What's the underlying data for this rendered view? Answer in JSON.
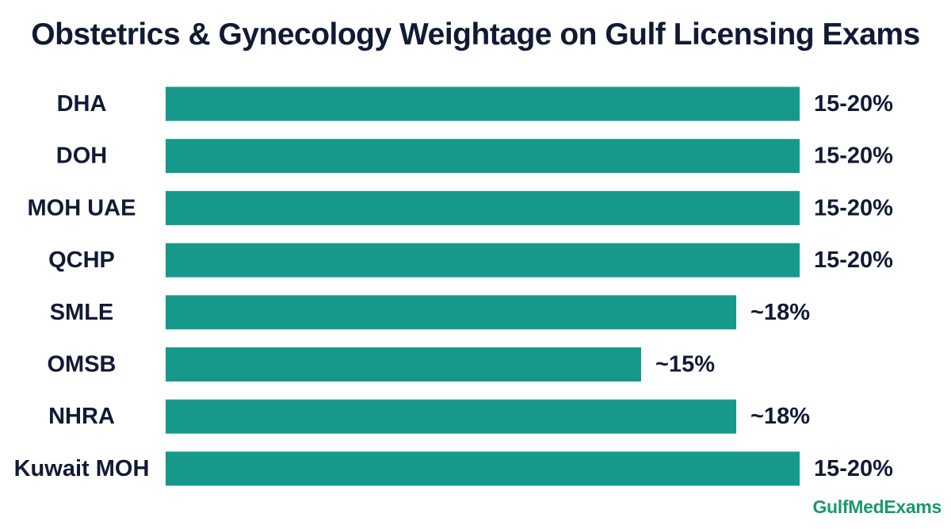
{
  "chart_data": {
    "type": "bar",
    "orientation": "horizontal",
    "title": "Obstetrics & Gynecology Weightage on Gulf Licensing Exams",
    "xlabel": "",
    "ylabel": "",
    "xlim": [
      0,
      20
    ],
    "grid": false,
    "legend": "none",
    "categories": [
      "DHA",
      "DOH",
      "MOH UAE",
      "QCHP",
      "SMLE",
      "OMSB",
      "NHRA",
      "Kuwait MOH"
    ],
    "values": [
      20,
      20,
      20,
      20,
      18,
      15,
      18,
      20
    ],
    "value_labels": [
      "15-20%",
      "15-20%",
      "15-20%",
      "15-20%",
      "~18%",
      "~15%",
      "~18%",
      "15-20%"
    ],
    "bar_color": "#16998b"
  },
  "watermark": {
    "text": "GulfMedExams",
    "color": "#1a9a6a"
  }
}
